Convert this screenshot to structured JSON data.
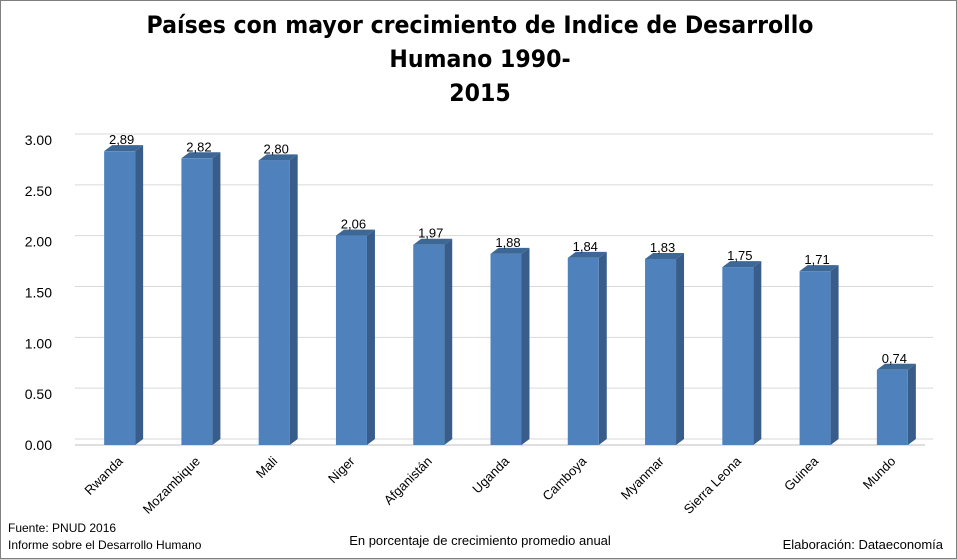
{
  "chart_data": {
    "type": "bar",
    "title": "Países con mayor crecimiento de Indice de Desarrollo Humano 1990-2015",
    "title_lines": [
      "Países con mayor crecimiento de Indice de Desarrollo Humano 1990-",
      "2015"
    ],
    "categories": [
      "Rwanda",
      "Mozambique",
      "Mali",
      "Niger",
      "Afganistán",
      "Uganda",
      "Camboya",
      "Myanmar",
      "Sierra Leona",
      "Guinea",
      "Mundo"
    ],
    "values": [
      2.89,
      2.82,
      2.8,
      2.06,
      1.97,
      1.88,
      1.84,
      1.83,
      1.75,
      1.71,
      0.74
    ],
    "value_labels": [
      "2,89",
      "2,82",
      "2,80",
      "2,06",
      "1,97",
      "1,88",
      "1,84",
      "1,83",
      "1,75",
      "1,71",
      "0,74"
    ],
    "ylim": [
      0,
      3.0
    ],
    "yticks": [
      "0.00",
      "0.50",
      "1.00",
      "1.50",
      "2.00",
      "2.50",
      "3.00"
    ],
    "xlabel": "En porcentaje de crecimiento promedio anual",
    "ylabel": "",
    "grid": true,
    "legend": "none",
    "bar_color": "#4f81bd",
    "bar_side_color": "#385d8a",
    "bar_top_color": "#3d6896"
  },
  "source_line1": "Fuente: PNUD  2016",
  "source_line2": "Informe sobre el Desarrollo Humano",
  "credit": "Elaboración: Dataeconomía"
}
